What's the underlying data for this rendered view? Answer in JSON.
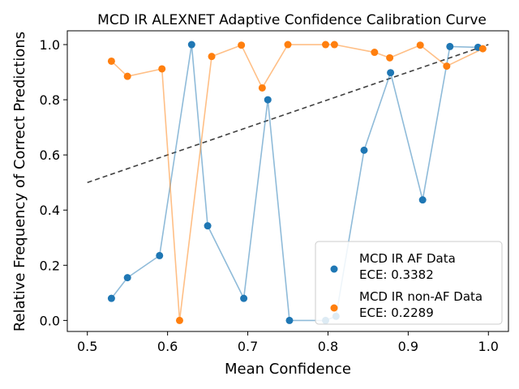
{
  "chart_data": {
    "type": "line",
    "title": "MCD IR ALEXNET Adaptive Confidence Calibration Curve",
    "xlabel": "Mean Confidence",
    "ylabel": "Relative Frequency of Correct Predictions",
    "xlim": [
      0.475,
      1.025
    ],
    "ylim": [
      -0.04,
      1.05
    ],
    "xticks": [
      0.5,
      0.6,
      0.7,
      0.8,
      0.9,
      1.0
    ],
    "xtick_labels": [
      "0.5",
      "0.6",
      "0.7",
      "0.8",
      "0.9",
      "1.0"
    ],
    "yticks": [
      0.0,
      0.2,
      0.4,
      0.6,
      0.8,
      1.0
    ],
    "ytick_labels": [
      "0.0",
      "0.2",
      "0.4",
      "0.6",
      "0.8",
      "1.0"
    ],
    "grid": false,
    "legend_position": "bottom-right",
    "reference_line": {
      "x": [
        0.5,
        1.0
      ],
      "y": [
        0.5,
        1.0
      ],
      "color": "#404040",
      "style": "dashed"
    },
    "series": [
      {
        "name": "MCD IR AF Data",
        "ece_label": "ECE: 0.3382",
        "color": "#1f77b4",
        "x": [
          0.53,
          0.55,
          0.59,
          0.63,
          0.65,
          0.695,
          0.725,
          0.752,
          0.797,
          0.81,
          0.845,
          0.878,
          0.918,
          0.952,
          0.987
        ],
        "y": [
          0.08,
          0.155,
          0.235,
          1.0,
          0.343,
          0.08,
          0.8,
          0.0,
          0.0,
          0.015,
          0.617,
          0.898,
          0.437,
          0.993,
          0.99
        ]
      },
      {
        "name": "MCD IR non-AF Data",
        "ece_label": "ECE: 0.2289",
        "color": "#ff7f0e",
        "x": [
          0.53,
          0.55,
          0.593,
          0.615,
          0.655,
          0.692,
          0.718,
          0.75,
          0.797,
          0.808,
          0.858,
          0.877,
          0.915,
          0.948,
          0.993
        ],
        "y": [
          0.94,
          0.885,
          0.912,
          0.0,
          0.957,
          0.998,
          0.843,
          1.0,
          1.0,
          1.0,
          0.972,
          0.952,
          0.998,
          0.922,
          0.985
        ]
      }
    ]
  }
}
